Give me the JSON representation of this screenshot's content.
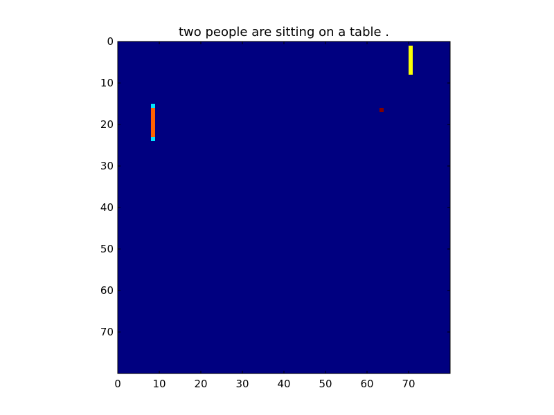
{
  "chart_data": {
    "type": "heatmap",
    "title": "two people are sitting on a table .",
    "xlabel": "",
    "ylabel": "",
    "xlim": [
      0,
      80
    ],
    "ylim": [
      80,
      0
    ],
    "x_ticks": [
      0,
      10,
      20,
      30,
      40,
      50,
      60,
      70
    ],
    "y_ticks": [
      0,
      10,
      20,
      30,
      40,
      50,
      60,
      70
    ],
    "colormap": "jet",
    "background_color": "#000080",
    "grid": false,
    "regions": [
      {
        "x": [
          8,
          9
        ],
        "y": [
          15,
          16
        ],
        "value": 0.35
      },
      {
        "x": [
          8,
          9
        ],
        "y": [
          16,
          23
        ],
        "value": 0.78
      },
      {
        "x": [
          8,
          9
        ],
        "y": [
          23,
          24
        ],
        "value": 0.35
      },
      {
        "x": [
          70,
          71
        ],
        "y": [
          1,
          8
        ],
        "value": 0.62
      },
      {
        "x": [
          63,
          64
        ],
        "y": [
          16,
          17
        ],
        "value": 1.0
      }
    ]
  }
}
